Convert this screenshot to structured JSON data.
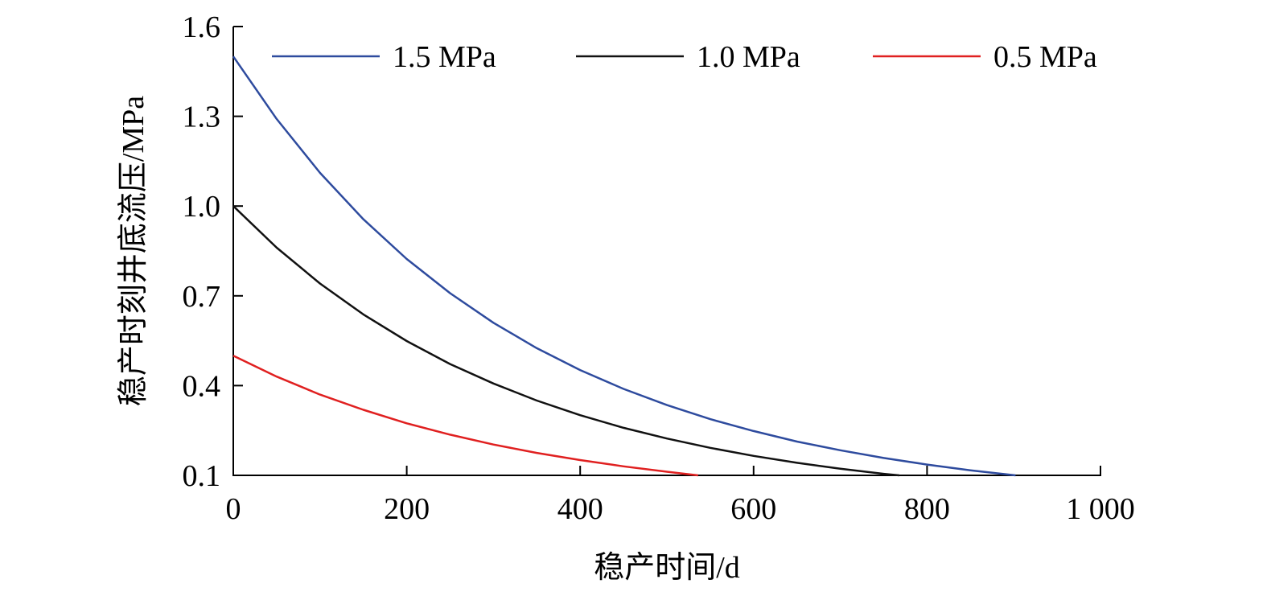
{
  "chart_data": {
    "type": "line",
    "title": "",
    "xlabel": "稳产时间/d",
    "ylabel": "稳产时刻井底流压/MPa",
    "xlim": [
      0,
      1000
    ],
    "ylim": [
      0.1,
      1.6
    ],
    "xticks": [
      0,
      200,
      400,
      600,
      800,
      1000
    ],
    "xtick_labels": [
      "0",
      "200",
      "400",
      "600",
      "800",
      "1 000"
    ],
    "yticks": [
      0.1,
      0.4,
      0.7,
      1.0,
      1.3,
      1.6
    ],
    "ytick_labels": [
      "0.1",
      "0.4",
      "0.7",
      "1.0",
      "1.3",
      "1.6"
    ],
    "grid": false,
    "legend_position": "top",
    "series": [
      {
        "name": "1.5 MPa",
        "color": "#2e4b9e",
        "x": [
          0,
          50,
          100,
          150,
          200,
          250,
          300,
          350,
          400,
          450,
          500,
          550,
          600,
          650,
          700,
          750,
          800,
          850,
          902
        ],
        "y": [
          1.5,
          1.291,
          1.111,
          0.956,
          0.823,
          0.709,
          0.61,
          0.525,
          0.452,
          0.389,
          0.335,
          0.288,
          0.248,
          0.213,
          0.184,
          0.158,
          0.136,
          0.117,
          0.1
        ]
      },
      {
        "name": "1.0 MPa",
        "color": "#111111",
        "x": [
          0,
          50,
          100,
          150,
          200,
          250,
          300,
          350,
          400,
          450,
          500,
          550,
          600,
          650,
          700,
          750,
          768
        ],
        "y": [
          1.0,
          0.861,
          0.741,
          0.638,
          0.549,
          0.472,
          0.407,
          0.35,
          0.301,
          0.259,
          0.223,
          0.192,
          0.165,
          0.142,
          0.122,
          0.105,
          0.1
        ]
      },
      {
        "name": "0.5 MPa",
        "color": "#e02020",
        "x": [
          0,
          50,
          100,
          150,
          200,
          250,
          300,
          350,
          400,
          450,
          500,
          536
        ],
        "y": [
          0.5,
          0.43,
          0.37,
          0.319,
          0.274,
          0.236,
          0.203,
          0.175,
          0.151,
          0.13,
          0.112,
          0.1
        ]
      }
    ]
  }
}
